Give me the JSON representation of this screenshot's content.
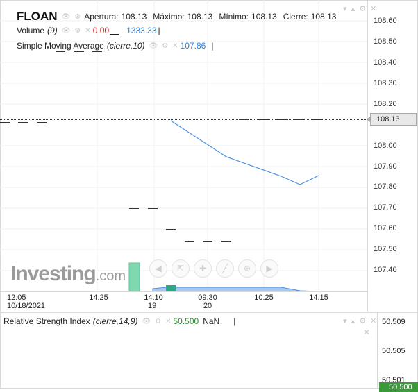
{
  "header": {
    "symbol": "FLOAN",
    "apertura_label": "Apertura:",
    "apertura_value": "108.13",
    "maximo_label": "Máximo:",
    "maximo_value": "108.13",
    "minimo_label": "Mínimo:",
    "minimo_value": "108.13",
    "cierre_label": "Cierre:",
    "cierre_value": "108.13"
  },
  "volume_legend": {
    "label": "Volume",
    "params": "(9)",
    "value_red": "0.00",
    "value_blue": "1333.33"
  },
  "sma_legend": {
    "label": "Simple Moving Average",
    "params": "(cierre,10)",
    "value": "107.86"
  },
  "price_axis": {
    "ticks": [
      "108.60",
      "108.50",
      "108.40",
      "108.30",
      "108.20",
      "108.00",
      "107.90",
      "107.80",
      "107.70",
      "107.60",
      "107.50",
      "107.40"
    ],
    "current_price": "108.13"
  },
  "time_axis": {
    "labels": [
      {
        "top": "12:05",
        "bottom": "10/18/2021"
      },
      {
        "top": "14:25",
        "bottom": ""
      },
      {
        "top": "14:10",
        "bottom": "19"
      },
      {
        "top": "09:30",
        "bottom": "20"
      },
      {
        "top": "10:25",
        "bottom": ""
      },
      {
        "top": "14:15",
        "bottom": ""
      }
    ]
  },
  "watermark": {
    "text_main": "Investing",
    "text_suffix": ".com"
  },
  "toolbar_icons": [
    "undo-icon",
    "cursor-icon",
    "crosshair-icon",
    "line-icon",
    "zoom-icon",
    "forward-icon"
  ],
  "rsi_legend": {
    "label": "Relative Strength Index",
    "params": "(cierre,14,9)",
    "value": "50.500",
    "value2": "NaN"
  },
  "rsi_axis": {
    "ticks": [
      "50.509",
      "50.505",
      "50.501"
    ],
    "current": "50.500"
  },
  "colors": {
    "sma_line": "#4a90e2",
    "volume_bar": "#7fd8b0",
    "volume_area": "#a8c8f0",
    "price_tag_bg": "#e8e8e8",
    "rsi_tag_bg": "#3a9a3a"
  }
}
